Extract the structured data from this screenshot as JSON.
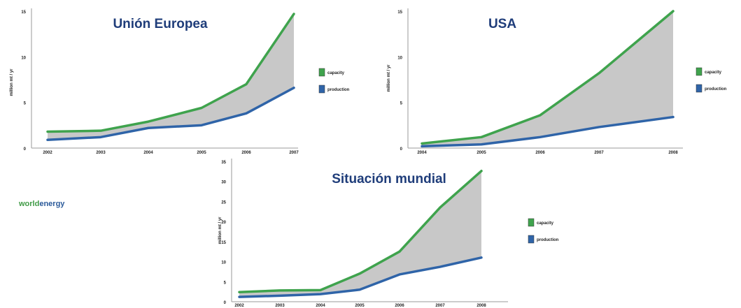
{
  "logo": {
    "part1": "world",
    "part2": "energy"
  },
  "colors": {
    "capacity": "#3fa34d",
    "production": "#2f64a8",
    "gap": "#c8c8c8"
  },
  "chart_data": [
    {
      "type": "area",
      "title": "Unión Europea",
      "xlabel": "",
      "ylabel": "million mt / yr",
      "x": [
        "2002",
        "2003",
        "2004",
        "2005",
        "2006",
        "2007"
      ],
      "y_ticks": [
        "0",
        "5",
        "10",
        "15"
      ],
      "ylim": [
        0,
        15
      ],
      "series": [
        {
          "name": "capacity",
          "values": [
            1.8,
            1.9,
            2.9,
            4.4,
            7.0,
            14.7
          ]
        },
        {
          "name": "production",
          "values": [
            0.9,
            1.2,
            2.2,
            2.5,
            3.8,
            6.6
          ]
        }
      ],
      "legend": "right",
      "grid": false
    },
    {
      "type": "area",
      "title": "USA",
      "xlabel": "",
      "ylabel": "million mt / yr",
      "x": [
        "2004",
        "2005",
        "2006",
        "2007",
        "2008"
      ],
      "y_ticks": [
        "0",
        "5",
        "10",
        "15"
      ],
      "ylim": [
        0,
        15
      ],
      "series": [
        {
          "name": "capacity",
          "values": [
            0.5,
            1.2,
            3.6,
            8.2,
            15.0
          ]
        },
        {
          "name": "production",
          "values": [
            0.2,
            0.4,
            1.2,
            2.3,
            3.4
          ]
        }
      ],
      "legend": "right",
      "grid": false
    },
    {
      "type": "area",
      "title": "Situación mundial",
      "xlabel": "",
      "ylabel": "million mt / yr",
      "x": [
        "2002",
        "2003",
        "2004",
        "2005",
        "2006",
        "2007",
        "2008"
      ],
      "y_ticks": [
        "0",
        "5",
        "10",
        "15",
        "20",
        "25",
        "30",
        "35"
      ],
      "ylim": [
        0,
        35
      ],
      "series": [
        {
          "name": "capacity",
          "values": [
            2.4,
            2.8,
            2.9,
            7.0,
            12.5,
            23.5,
            32.6
          ]
        },
        {
          "name": "production",
          "values": [
            1.2,
            1.5,
            1.9,
            3.0,
            6.8,
            8.7,
            11.0
          ]
        }
      ],
      "legend": "right",
      "grid": false
    }
  ]
}
